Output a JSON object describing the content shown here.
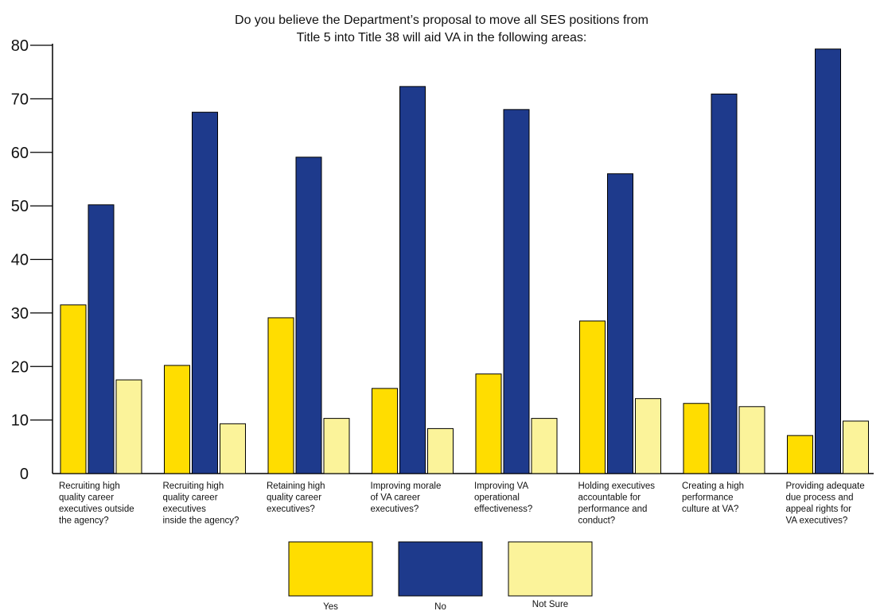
{
  "chart_data": {
    "type": "bar",
    "title_lines": [
      "Do you believe the Department’s proposal to move all SES positions from",
      "Title 5 into Title 38 will aid VA in the following areas:"
    ],
    "ylim": [
      0,
      80
    ],
    "yticks": [
      0,
      10,
      20,
      30,
      40,
      50,
      60,
      70,
      80
    ],
    "grid": false,
    "legend_position": "bottom-center",
    "categories": [
      [
        "Recruiting high",
        "quality career",
        "executives outside",
        "the agency?"
      ],
      [
        "Recruiting high",
        "quality career",
        "executives",
        "inside the agency?"
      ],
      [
        "Retaining high",
        "quality career",
        "executives?"
      ],
      [
        "Improving morale",
        "of VA career",
        "executives?"
      ],
      [
        "Improving VA",
        "operational",
        "effectiveness?"
      ],
      [
        "Holding executives",
        "accountable for",
        "performance and",
        "conduct?"
      ],
      [
        "Creating a high",
        "performance",
        "culture at VA?"
      ],
      [
        "Providing adequate",
        "due process and",
        "appeal rights for",
        "VA executives?"
      ]
    ],
    "series": [
      {
        "name": "Yes",
        "color": "#FFDD00",
        "values": [
          31.5,
          20.2,
          29.1,
          15.9,
          18.6,
          28.5,
          13.1,
          7.1
        ]
      },
      {
        "name": "No",
        "color": "#1E3A8C",
        "values": [
          50.2,
          67.5,
          59.1,
          72.3,
          68.0,
          56.0,
          70.9,
          79.3
        ]
      },
      {
        "name": "Not Sure",
        "color": "#FBF39A",
        "values": [
          17.5,
          9.3,
          10.3,
          8.4,
          10.3,
          14.0,
          12.5,
          9.8
        ]
      }
    ]
  }
}
